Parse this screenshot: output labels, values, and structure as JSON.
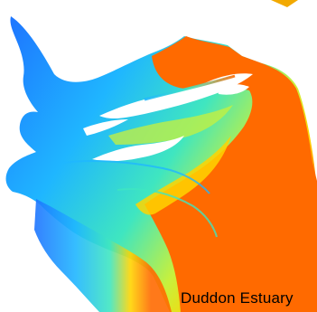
{
  "caption": "Duddon Estuary",
  "map": {
    "kind": "estuary-bathymetry-heatmap",
    "colors": {
      "deep": "#1e73ff",
      "mid_deep": "#1fb6ff",
      "mid": "#3fe6c0",
      "mid_shallow": "#c8f03c",
      "shallow": "#ffd400",
      "high": "#ff6a00",
      "channel_white": "#ffffff",
      "corner_accent": "#f2a900"
    }
  }
}
